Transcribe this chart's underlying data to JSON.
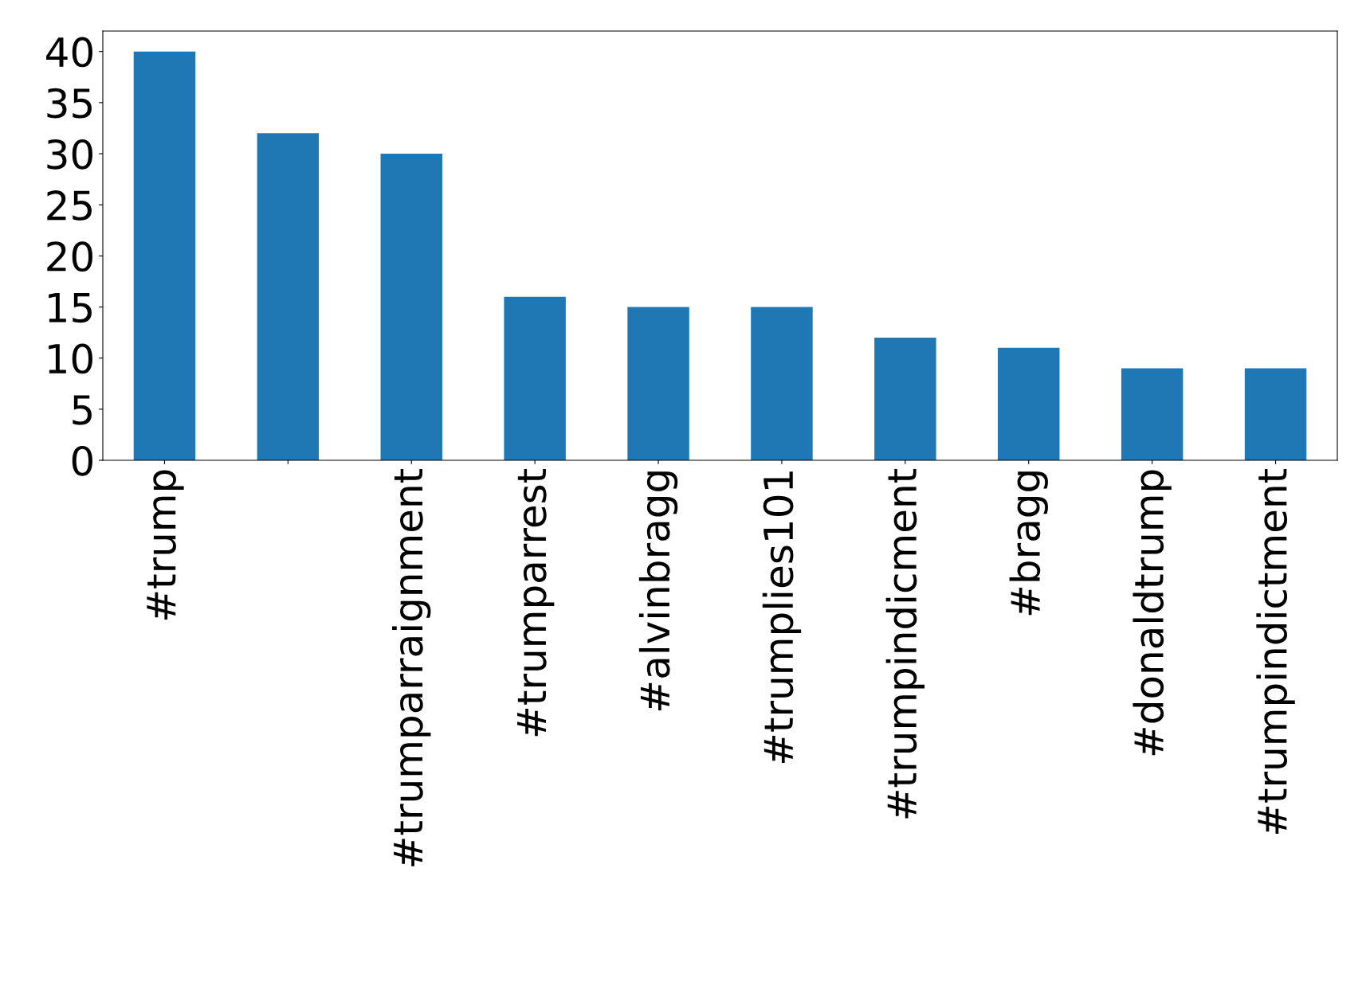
{
  "chart_data": {
    "type": "bar",
    "categories": [
      "#trump",
      null,
      "#trumparraignment",
      "#trumparrest",
      "#alvinbragg",
      "#trumplies101",
      "#trumpindicment",
      "#bragg",
      "#donaldtrump",
      "#trumpindictment"
    ],
    "values": [
      40,
      32,
      30,
      16,
      15,
      15,
      12,
      11,
      9,
      9
    ],
    "color": "#1f77b4",
    "ylim": [
      0,
      42
    ],
    "yticks": [
      0,
      5,
      10,
      15,
      20,
      25,
      30,
      35,
      40
    ],
    "grid": false
  }
}
